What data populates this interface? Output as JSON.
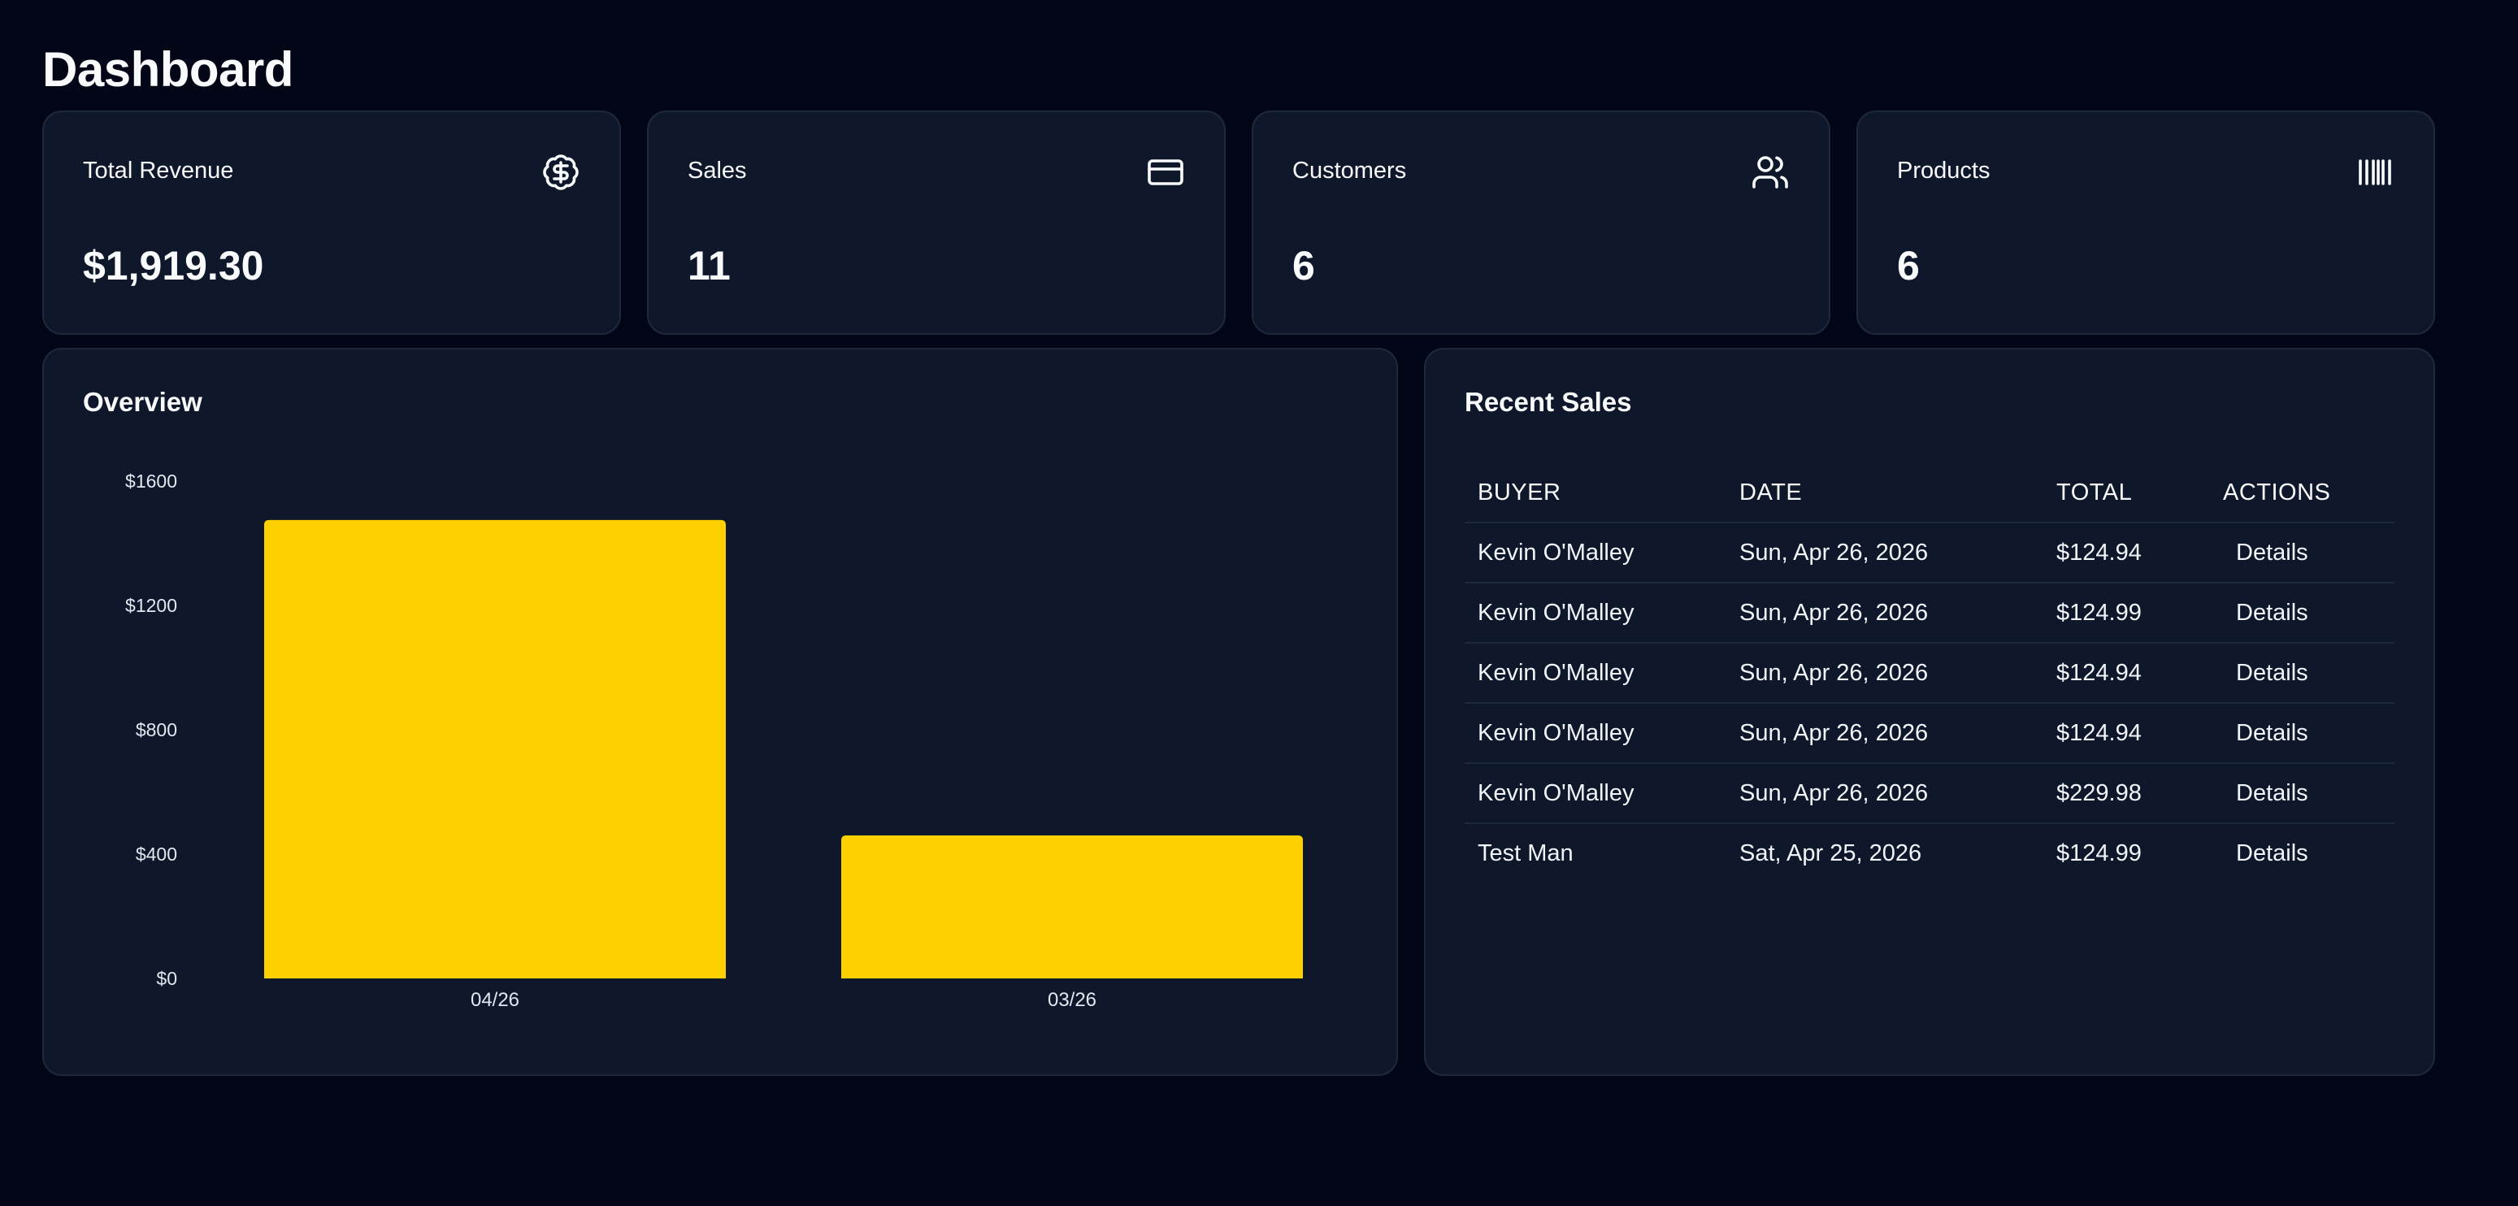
{
  "page": {
    "title": "Dashboard"
  },
  "stats": [
    {
      "label": "Total Revenue",
      "value": "$1,919.30",
      "icon": "dollar-badge-icon"
    },
    {
      "label": "Sales",
      "value": "11",
      "icon": "credit-card-icon"
    },
    {
      "label": "Customers",
      "value": "6",
      "icon": "users-icon"
    },
    {
      "label": "Products",
      "value": "6",
      "icon": "barcode-icon"
    }
  ],
  "overview": {
    "title": "Overview"
  },
  "chart_data": {
    "type": "bar",
    "categories": [
      "04/26",
      "03/26"
    ],
    "values": [
      1475,
      460
    ],
    "ylim": [
      0,
      1600
    ],
    "yticks": [
      0,
      400,
      800,
      1200,
      1600
    ],
    "ytick_labels": [
      "$0",
      "$400",
      "$800",
      "$1200",
      "$1600"
    ],
    "grid": false,
    "bar_color": "#FFD000"
  },
  "recent_sales": {
    "title": "Recent Sales",
    "columns": [
      "BUYER",
      "DATE",
      "TOTAL",
      "ACTIONS"
    ],
    "rows": [
      {
        "buyer": "Kevin O'Malley",
        "date": "Sun, Apr 26, 2026",
        "total": "$124.94",
        "action": "Details"
      },
      {
        "buyer": "Kevin O'Malley",
        "date": "Sun, Apr 26, 2026",
        "total": "$124.99",
        "action": "Details"
      },
      {
        "buyer": "Kevin O'Malley",
        "date": "Sun, Apr 26, 2026",
        "total": "$124.94",
        "action": "Details"
      },
      {
        "buyer": "Kevin O'Malley",
        "date": "Sun, Apr 26, 2026",
        "total": "$124.94",
        "action": "Details"
      },
      {
        "buyer": "Kevin O'Malley",
        "date": "Sun, Apr 26, 2026",
        "total": "$229.98",
        "action": "Details"
      },
      {
        "buyer": "Test Man",
        "date": "Sat, Apr 25, 2026",
        "total": "$124.99",
        "action": "Details"
      }
    ]
  },
  "colors": {
    "background": "#020617",
    "card": "#0f172a",
    "border": "#1e293b",
    "accent": "#FFD000"
  }
}
